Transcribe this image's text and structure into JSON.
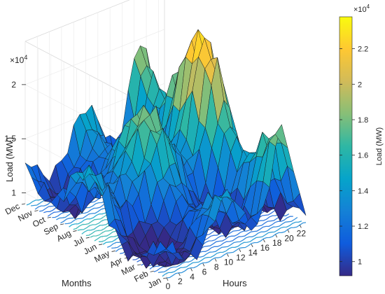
{
  "chart_data": {
    "type": "surface3d",
    "xlabel": "Hours",
    "ylabel": "Months",
    "zlabel": "Load (MW)",
    "x_ticks": [
      "0",
      "2",
      "4",
      "6",
      "8",
      "10",
      "12",
      "14",
      "16",
      "18",
      "20",
      "22"
    ],
    "x_values": [
      0,
      2,
      4,
      6,
      8,
      10,
      12,
      14,
      16,
      18,
      20,
      22
    ],
    "y_ticks": [
      "Jan",
      "Feb",
      "Mar",
      "Apr",
      "May",
      "Jun",
      "Jul",
      "Aug",
      "Sep",
      "Oct",
      "Nov",
      "Dec"
    ],
    "z_ticks": [
      "1",
      "1.5",
      "2"
    ],
    "z_values": [
      10000,
      15000,
      20000
    ],
    "z_multiplier": "×10^4",
    "zlim": [
      9000,
      24000
    ],
    "colorbar": {
      "label": "Load (MW)",
      "ticks": [
        "1",
        "1.2",
        "1.4",
        "1.6",
        "1.8",
        "2",
        "2.2"
      ],
      "values": [
        10000,
        12000,
        14000,
        16000,
        18000,
        20000,
        22000
      ],
      "range": [
        9200,
        23800
      ],
      "multiplier": "×10^4",
      "colormap": "parula"
    },
    "daily_profile_note": "Daily load curve per month: low overnight, morning rise, evening peak around hour 18–20; summer months highest",
    "monthly_peak_load": {
      "Jan": 18500,
      "Feb": 17500,
      "Mar": 15500,
      "Apr": 14500,
      "May": 16500,
      "Jun": 21000,
      "Jul": 23500,
      "Aug": 22500,
      "Sep": 19000,
      "Oct": 16000,
      "Nov": 17000,
      "Dec": 19500
    },
    "grid": true,
    "legend": "none"
  }
}
